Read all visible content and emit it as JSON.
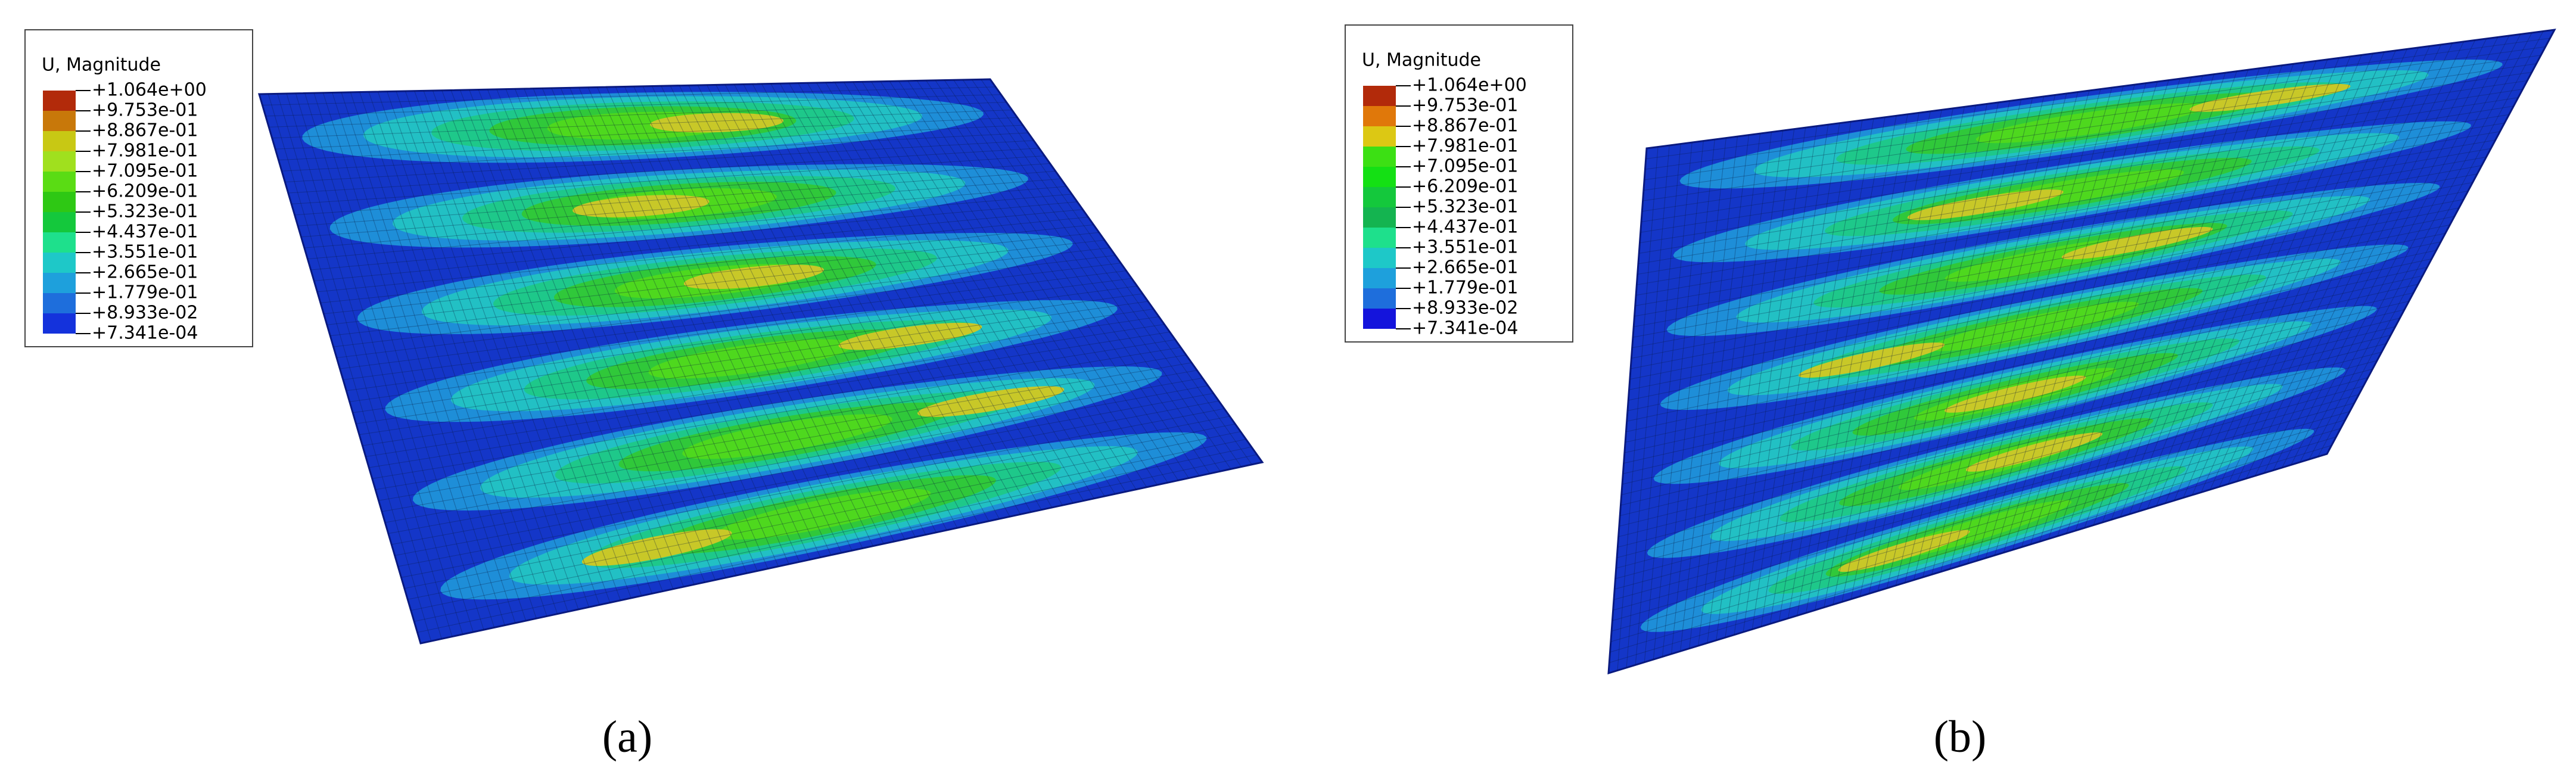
{
  "panels": [
    {
      "legend": {
        "title": "U, Magnitude",
        "labels": [
          "+1.064e+00",
          "+9.753e-01",
          "+8.867e-01",
          "+7.981e-01",
          "+7.095e-01",
          "+6.209e-01",
          "+5.323e-01",
          "+4.437e-01",
          "+3.551e-01",
          "+2.665e-01",
          "+1.779e-01",
          "+8.933e-02",
          "+7.341e-04"
        ],
        "colors": [
          "#b22a0a",
          "#c8780a",
          "#c8c814",
          "#a0e01e",
          "#5adc14",
          "#2ec814",
          "#14c83c",
          "#1ee08c",
          "#1ec8c8",
          "#1ea0dc",
          "#1e6edc",
          "#1432dc"
        ]
      },
      "caption": "(a)"
    },
    {
      "legend": {
        "title": "U, Magnitude",
        "labels": [
          "+1.064e+00",
          "+9.753e-01",
          "+8.867e-01",
          "+7.981e-01",
          "+7.095e-01",
          "+6.209e-01",
          "+5.323e-01",
          "+4.437e-01",
          "+3.551e-01",
          "+2.665e-01",
          "+1.779e-01",
          "+8.933e-02",
          "+7.341e-04"
        ],
        "colors": [
          "#b22a0a",
          "#e0780a",
          "#dcc814",
          "#3ce014",
          "#14e014",
          "#14c83c",
          "#14b450",
          "#1ee08c",
          "#1ec8c8",
          "#1ea0dc",
          "#1e6edc",
          "#1414dc"
        ]
      },
      "caption": "(b)"
    }
  ]
}
